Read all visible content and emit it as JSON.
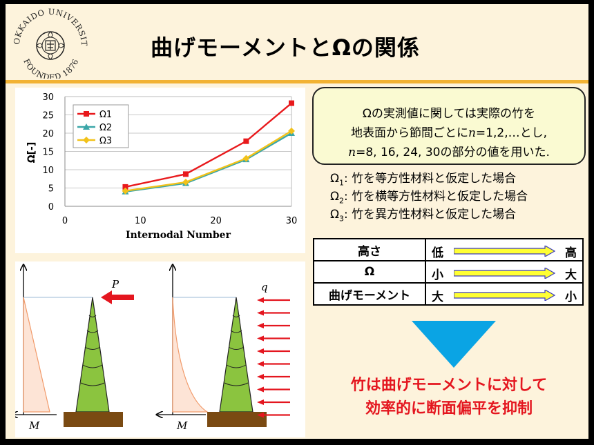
{
  "header": {
    "title": "曲げモーメントとΩの関係",
    "logo": {
      "arc_top": "HOKKAIDO UNIVERSITY",
      "arc_bottom": "FOUNDED 1876",
      "emblem": "sakura-seal-icon"
    }
  },
  "chart_data": {
    "type": "line",
    "x": [
      8,
      16,
      24,
      30
    ],
    "series": [
      {
        "name": "Ω1",
        "values": [
          5.3,
          8.8,
          17.8,
          28.2
        ],
        "color": "#e8191c",
        "marker": "square"
      },
      {
        "name": "Ω2",
        "values": [
          4.0,
          6.3,
          12.8,
          20.0
        ],
        "color": "#3aa6a8",
        "marker": "triangle"
      },
      {
        "name": "Ω3",
        "values": [
          4.2,
          6.6,
          13.1,
          20.6
        ],
        "color": "#f2c21a",
        "marker": "diamond"
      }
    ],
    "xlabel": "Internodal Number",
    "ylabel": "Ω[-]",
    "xlim": [
      0,
      30
    ],
    "ylim": [
      0,
      30
    ],
    "xticks": [
      "0",
      "10",
      "20",
      "30"
    ],
    "yticks": [
      "0",
      "5",
      "10",
      "15",
      "20",
      "25",
      "30"
    ],
    "grid": "horizontal",
    "legend_placement": "top-left"
  },
  "note": {
    "line1": "Ωの実測値に関しては実際の竹を",
    "line2_pre": "地表面から節間ごとに",
    "line2_var": "n",
    "line2_post": "=1,2,…とし,",
    "line3_var": "n",
    "line3_post": "=8, 16, 24, 30の部分の値を用いた."
  },
  "omega_defs": [
    {
      "symbol": "Ω",
      "sub": "1",
      "text": ": 竹を等方性材料と仮定した場合"
    },
    {
      "symbol": "Ω",
      "sub": "2",
      "text": ": 竹を横等方性材料と仮定した場合"
    },
    {
      "symbol": "Ω",
      "sub": "3",
      "text": ": 竹を異方性材料と仮定した場合"
    }
  ],
  "comparison": [
    {
      "label": "高さ",
      "low": "低",
      "high": "高"
    },
    {
      "label": "Ω",
      "low": "小",
      "high": "大"
    },
    {
      "label": "曲げモーメント",
      "low": "大",
      "high": "小"
    }
  ],
  "diagram": {
    "left_force": "P",
    "right_load": "q",
    "moment_left": "M",
    "moment_right": "M"
  },
  "conclusion": {
    "line1": "竹は曲げモーメントに対して",
    "line2": "効率的に断面偏平を抑制"
  },
  "colors": {
    "background": "#fdf3dc",
    "title_rule": "#f2b233",
    "accent_red": "#e4161f",
    "arrow_blue": "#0aa4e4",
    "bamboo_green": "#8bc43f",
    "ground": "#7a4a12"
  }
}
